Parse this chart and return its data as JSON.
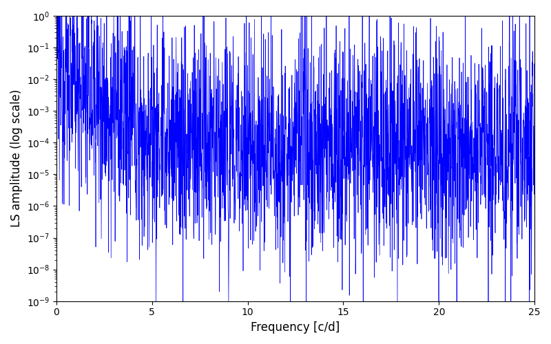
{
  "xlabel": "Frequency [c/d]",
  "ylabel": "LS amplitude (log scale)",
  "line_color": "#0000ff",
  "xlim": [
    0,
    25
  ],
  "ylim": [
    1e-09,
    1.0
  ],
  "xticks": [
    0,
    5,
    10,
    15,
    20,
    25
  ],
  "background_color": "#ffffff",
  "seed": 12345,
  "n_points": 2500,
  "freq_max": 25.0,
  "line_width": 0.5
}
